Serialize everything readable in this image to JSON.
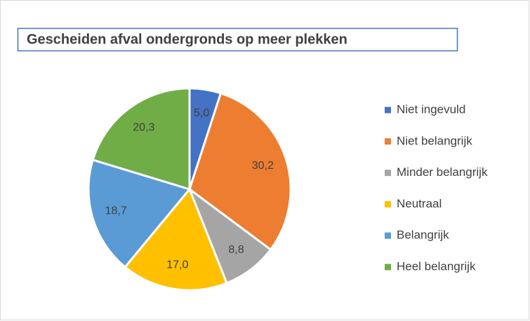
{
  "chart_data": {
    "type": "pie",
    "title": "Gescheiden afval ondergronds op meer plekken",
    "categories": [
      "Niet ingevuld",
      "Niet belangrijk",
      "Minder belangrijk",
      "Neutraal",
      "Belangrijk",
      "Heel belangrijk"
    ],
    "values": [
      5.0,
      30.2,
      8.8,
      17.0,
      18.7,
      20.3
    ],
    "value_labels": [
      "5,0",
      "30,2",
      "8,8",
      "17,0",
      "18,7",
      "20,3"
    ],
    "colors": [
      "#4472c4",
      "#ed7d31",
      "#a5a5a5",
      "#ffc000",
      "#5b9bd5",
      "#70ad47"
    ],
    "legend": "right"
  }
}
